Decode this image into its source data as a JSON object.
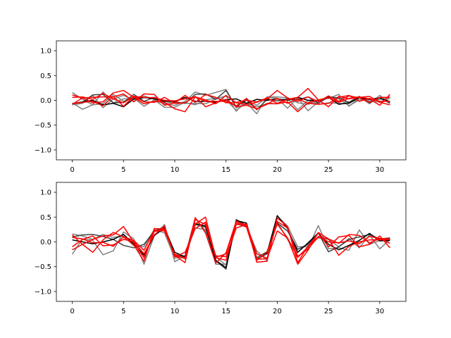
{
  "chart_data": [
    {
      "type": "line",
      "title": "",
      "xlabel": "",
      "ylabel": "",
      "xlim": [
        -1.55,
        32.55
      ],
      "ylim": [
        -1.2,
        1.2
      ],
      "xticks": [
        0,
        5,
        10,
        15,
        20,
        25,
        30
      ],
      "yticks": [
        -1.0,
        -0.5,
        0.0,
        0.5,
        1.0
      ],
      "ytick_labels": [
        "−1.0",
        "−0.5",
        "0.0",
        "0.5",
        "1.0"
      ],
      "grid": false,
      "series": [
        {
          "color": "#808080",
          "values": [
            0.16,
            0.02,
            -0.09,
            -0.07,
            0.12,
            -0.02,
            0.05,
            -0.12,
            0.01,
            -0.14,
            -0.14,
            -0.04,
            -0.09,
            0.01,
            0.04,
            0.01,
            -0.2,
            -0.05,
            -0.27,
            0.07,
            0.07,
            0.05,
            -0.05,
            -0.08,
            0.0,
            0.04,
            0.12,
            -0.12,
            0.05,
            -0.02,
            0.02,
            0.03
          ]
        },
        {
          "color": "#808080",
          "values": [
            -0.05,
            -0.18,
            -0.09,
            0.17,
            -0.05,
            0.03,
            0.03,
            0.09,
            0.02,
            -0.08,
            -0.1,
            -0.02,
            0.17,
            0.1,
            0.16,
            0.22,
            -0.15,
            -0.07,
            -0.13,
            -0.07,
            -0.07,
            0.04,
            -0.19,
            0.0,
            -0.08,
            -0.05,
            -0.06,
            -0.07,
            0.07,
            -0.07,
            0.1,
            -0.04
          ]
        },
        {
          "color": "#808080",
          "values": [
            -0.09,
            -0.06,
            0.1,
            -0.15,
            0.03,
            0.1,
            0.01,
            0.05,
            0.06,
            -0.06,
            -0.03,
            -0.06,
            -0.06,
            -0.07,
            0.03,
            0.09,
            -0.22,
            0.01,
            -0.1,
            0.06,
            0.04,
            -0.16,
            0.05,
            -0.21,
            -0.03,
            0.05,
            0.03,
            -0.11,
            0.01,
            0.01,
            -0.04,
            0.07
          ]
        },
        {
          "color": "#404040",
          "values": [
            -0.07,
            -0.04,
            0.11,
            0.12,
            -0.05,
            -0.04,
            0.12,
            -0.02,
            0.06,
            -0.01,
            -0.03,
            -0.06,
            0.12,
            0.13,
            0.02,
            0.2,
            -0.13,
            0.01,
            -0.19,
            0.02,
            -0.01,
            0.03,
            0.01,
            0.07,
            -0.06,
            0.07,
            0.05,
            -0.04,
            0.08,
            -0.05,
            0.05,
            -0.06
          ]
        },
        {
          "color": "#000000",
          "values": [
            -0.07,
            -0.03,
            0.0,
            -0.09,
            -0.06,
            -0.13,
            0.03,
            0.06,
            0.03,
            -0.02,
            -0.02,
            0.06,
            -0.02,
            -0.02,
            -0.04,
            0.01,
            0.03,
            -0.06,
            0.02,
            0.0,
            0.03,
            0.0,
            0.06,
            0.0,
            0.0,
            0.06,
            -0.08,
            -0.05,
            0.05,
            0.02,
            0.05,
            -0.03
          ]
        },
        {
          "color": "#ff0000",
          "values": [
            0.11,
            0.05,
            0.06,
            0.07,
            0.07,
            0.13,
            -0.03,
            0.13,
            0.12,
            -0.1,
            -0.05,
            0.1,
            -0.04,
            0.12,
            0.06,
            -0.05,
            -0.04,
            0.0,
            -0.03,
            0.03,
            0.2,
            0.05,
            -0.02,
            0.07,
            -0.03,
            0.09,
            -0.02,
            0.09,
            0.05,
            -0.04,
            0.06,
            0.06
          ]
        },
        {
          "color": "#ff0000",
          "values": [
            -0.08,
            0.05,
            -0.05,
            -0.03,
            0.15,
            0.2,
            0.06,
            -0.07,
            -0.02,
            -0.04,
            -0.17,
            -0.23,
            0.07,
            -0.02,
            -0.02,
            -0.02,
            -0.11,
            0.04,
            -0.18,
            -0.06,
            -0.07,
            -0.03,
            -0.23,
            -0.05,
            0.01,
            0.05,
            -0.04,
            0.04,
            0.07,
            0.03,
            -0.1,
            0.12
          ]
        },
        {
          "color": "#ff0000",
          "values": [
            0.06,
            0.07,
            0.02,
            0.14,
            0.03,
            -0.05,
            0.08,
            0.06,
            0.05,
            0.0,
            -0.01,
            0.03,
            0.07,
            0.01,
            -0.07,
            0.1,
            -0.05,
            -0.08,
            -0.04,
            0.05,
            -0.06,
            0.02,
            0.06,
            0.24,
            0.01,
            -0.13,
            0.08,
            0.03,
            0.06,
            0.08,
            -0.04,
            -0.09
          ]
        },
        {
          "color": "#ff0000",
          "values": [
            -0.07,
            -0.04,
            -0.02,
            -0.11,
            0.08,
            -0.12,
            0.08,
            -0.03,
            -0.04,
            0.06,
            -0.06,
            -0.05,
            0.08,
            -0.13,
            -0.05,
            0.02,
            -0.13,
            -0.1,
            -0.17,
            -0.08,
            0.04,
            -0.06,
            0.03,
            -0.06,
            -0.08,
            -0.06,
            0.06,
            0.1,
            -0.02,
            0.04,
            -0.02,
            -0.02
          ]
        }
      ]
    },
    {
      "type": "line",
      "title": "",
      "xlabel": "",
      "ylabel": "",
      "xlim": [
        -1.55,
        32.55
      ],
      "ylim": [
        -1.2,
        1.2
      ],
      "xticks": [
        0,
        5,
        10,
        15,
        20,
        25,
        30
      ],
      "yticks": [
        -1.0,
        -0.5,
        0.0,
        0.5,
        1.0
      ],
      "ytick_labels": [
        "−1.0",
        "−0.5",
        "0.0",
        "0.5",
        "1.0"
      ],
      "grid": false,
      "series": [
        {
          "color": "#808080",
          "values": [
            -0.25,
            0.06,
            0.03,
            -0.26,
            -0.18,
            0.2,
            0.06,
            -0.45,
            0.12,
            0.35,
            -0.4,
            -0.28,
            0.28,
            0.25,
            -0.45,
            -0.45,
            0.43,
            0.3,
            -0.34,
            -0.24,
            0.4,
            0.05,
            -0.31,
            -0.13,
            0.33,
            -0.14,
            -0.12,
            -0.17,
            0.24,
            -0.05,
            0.03,
            0.03
          ]
        },
        {
          "color": "#808080",
          "values": [
            0.16,
            0.12,
            0.05,
            0.15,
            0.09,
            0.12,
            -0.08,
            -0.1,
            0.25,
            0.18,
            -0.33,
            -0.28,
            0.48,
            0.22,
            -0.3,
            -0.47,
            0.36,
            0.3,
            -0.18,
            -0.38,
            0.52,
            0.32,
            -0.1,
            -0.1,
            0.08,
            0.05,
            -0.1,
            0.07,
            -0.12,
            0.14,
            -0.14,
            0.05
          ]
        },
        {
          "color": "#404040",
          "values": [
            0.1,
            0.14,
            0.15,
            0.11,
            0.05,
            -0.07,
            -0.12,
            -0.05,
            0.22,
            0.3,
            -0.25,
            -0.3,
            0.35,
            0.3,
            -0.38,
            -0.55,
            0.45,
            0.33,
            -0.32,
            -0.2,
            0.38,
            0.22,
            -0.15,
            -0.05,
            0.18,
            -0.2,
            -0.1,
            0.05,
            0.1,
            0.15,
            0.06,
            0.08
          ]
        },
        {
          "color": "#000000",
          "values": [
            0.04,
            0.0,
            -0.04,
            0.0,
            0.05,
            0.15,
            -0.04,
            -0.27,
            0.13,
            0.28,
            -0.21,
            -0.3,
            0.37,
            0.32,
            -0.37,
            -0.52,
            0.43,
            0.38,
            -0.36,
            -0.23,
            0.53,
            0.27,
            -0.21,
            -0.02,
            0.18,
            -0.05,
            -0.16,
            -0.07,
            0.03,
            0.17,
            0.02,
            0.03
          ]
        },
        {
          "color": "#ff0000",
          "values": [
            0.14,
            -0.05,
            0.05,
            0.12,
            0.14,
            0.31,
            -0.01,
            -0.32,
            0.21,
            0.25,
            -0.27,
            -0.42,
            0.45,
            0.35,
            -0.31,
            -0.24,
            0.39,
            0.3,
            -0.37,
            -0.21,
            0.36,
            0.08,
            -0.31,
            -0.1,
            0.18,
            -0.1,
            0.1,
            0.13,
            -0.1,
            -0.05,
            0.12,
            -0.12
          ]
        },
        {
          "color": "#ff0000",
          "values": [
            0.09,
            0.06,
            -0.02,
            -0.01,
            -0.09,
            0.1,
            0.03,
            -0.17,
            0.24,
            0.22,
            -0.25,
            -0.34,
            0.49,
            0.18,
            -0.43,
            -0.22,
            0.42,
            0.32,
            -0.35,
            -0.34,
            0.22,
            0.08,
            -0.45,
            -0.17,
            0.19,
            0.06,
            -0.27,
            -0.09,
            0.0,
            0.04,
            0.04,
            0.05
          ]
        },
        {
          "color": "#ff0000",
          "values": [
            -0.16,
            -0.05,
            -0.21,
            0.04,
            0.19,
            0.1,
            -0.06,
            -0.39,
            0.27,
            0.26,
            -0.29,
            -0.32,
            0.36,
            0.5,
            -0.32,
            -0.37,
            0.35,
            0.36,
            -0.41,
            -0.39,
            0.48,
            0.31,
            -0.42,
            -0.08,
            0.1,
            0.06,
            -0.03,
            0.15,
            0.13,
            -0.02,
            0.07,
            0.06
          ]
        },
        {
          "color": "#ff0000",
          "values": [
            -0.1,
            0.05,
            0.12,
            -0.08,
            -0.06,
            0.05,
            0.01,
            -0.24,
            0.14,
            0.32,
            -0.3,
            -0.21,
            0.27,
            0.4,
            -0.28,
            -0.3,
            0.28,
            0.35,
            -0.24,
            -0.33,
            0.41,
            0.28,
            -0.29,
            -0.15,
            0.11,
            0.0,
            -0.02,
            0.02,
            -0.04,
            0.11,
            0.07,
            -0.03
          ]
        }
      ]
    }
  ]
}
